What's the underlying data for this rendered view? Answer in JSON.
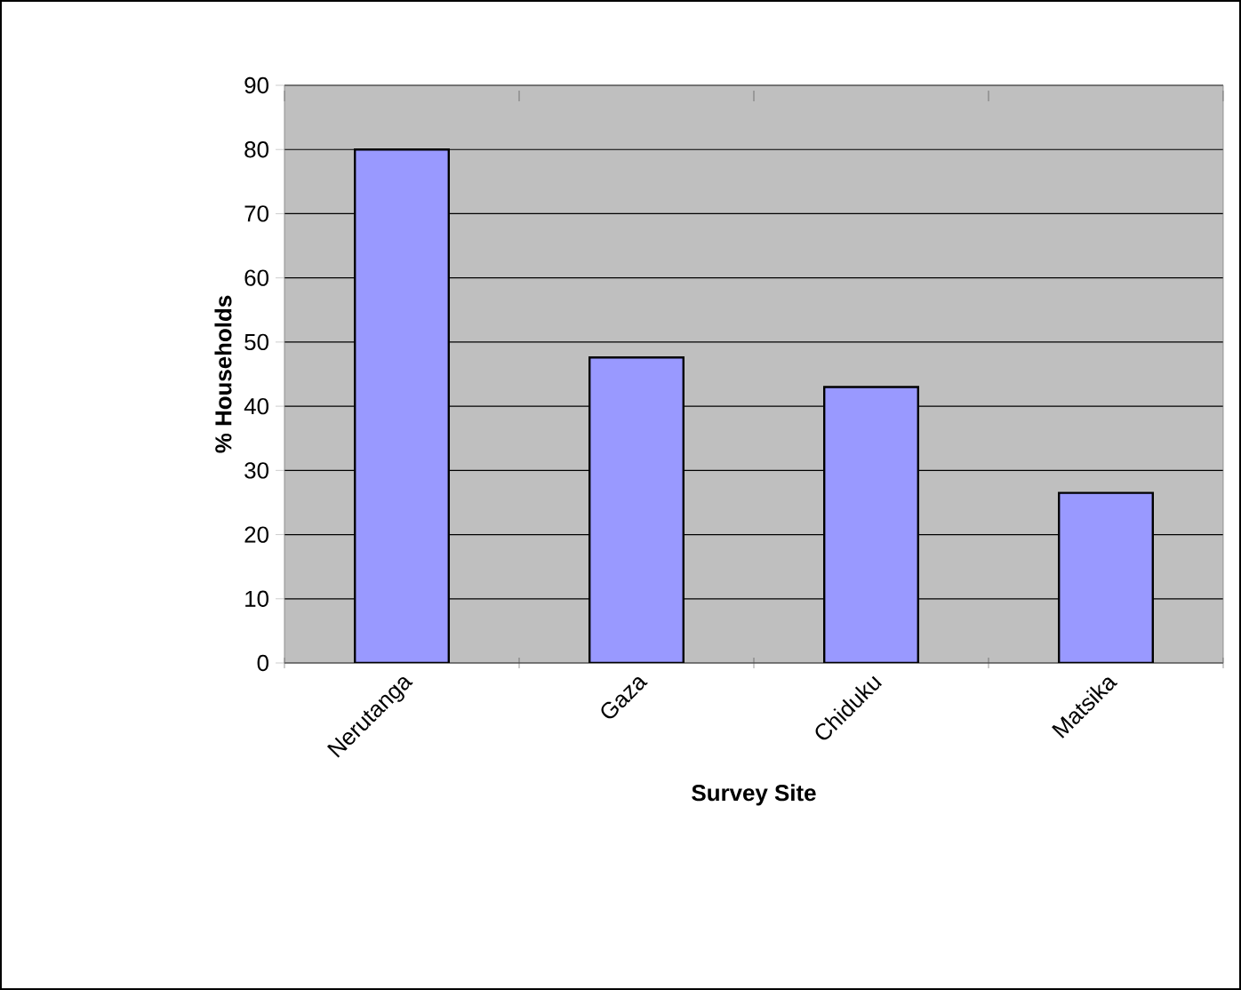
{
  "chart_data": {
    "type": "bar",
    "xlabel": "Survey Site",
    "ylabel": "% Households",
    "categories": [
      "Nerutanga",
      "Gaza",
      "Chiduku",
      "Matsika"
    ],
    "values": [
      80,
      47.6,
      43,
      26.5
    ],
    "color": "#9999ff",
    "ylim": [
      0,
      90
    ],
    "yticks": [
      0,
      10,
      20,
      30,
      40,
      50,
      60,
      70,
      80,
      90
    ],
    "grid": "y"
  }
}
